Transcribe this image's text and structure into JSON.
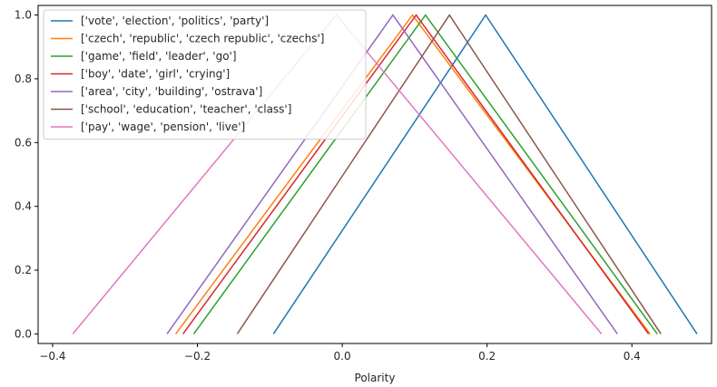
{
  "chart_data": {
    "type": "line",
    "title": "",
    "xlabel": "Polarity",
    "ylabel": "",
    "xlim": [
      -0.42,
      0.51
    ],
    "ylim": [
      -0.03,
      1.03
    ],
    "xticks": [
      -0.4,
      -0.2,
      0.0,
      0.2,
      0.4
    ],
    "xtick_labels": [
      "−0.4",
      "−0.2",
      "0.0",
      "0.2",
      "0.4"
    ],
    "yticks": [
      0.0,
      0.2,
      0.4,
      0.6,
      0.8,
      1.0
    ],
    "ytick_labels": [
      "0.0",
      "0.2",
      "0.4",
      "0.6",
      "0.8",
      "1.0"
    ],
    "grid": false,
    "legend_position": "top-left",
    "series": [
      {
        "name": "['vote', 'election', 'politics', 'party']",
        "color": "#1f77b4",
        "x": [
          -0.095,
          0.198,
          0.49
        ],
        "y": [
          0,
          1,
          0
        ]
      },
      {
        "name": "['czech', 'republic', 'czech republic', 'czechs']",
        "color": "#ff7f0e",
        "x": [
          -0.23,
          0.097,
          0.425
        ],
        "y": [
          0,
          1,
          0
        ]
      },
      {
        "name": "['game', 'field', 'leader', 'go']",
        "color": "#2ca02c",
        "x": [
          -0.205,
          0.115,
          0.435
        ],
        "y": [
          0,
          1,
          0
        ]
      },
      {
        "name": "['boy', 'date', 'girl', 'crying']",
        "color": "#d62728",
        "x": [
          -0.22,
          0.102,
          0.423
        ],
        "y": [
          0,
          1,
          0
        ]
      },
      {
        "name": "['area', 'city', 'building', 'ostrava']",
        "color": "#9467bd",
        "x": [
          -0.242,
          0.07,
          0.38
        ],
        "y": [
          0,
          1,
          0
        ]
      },
      {
        "name": "['school', 'education', 'teacher', 'class']",
        "color": "#8c564b",
        "x": [
          -0.145,
          0.148,
          0.44
        ],
        "y": [
          0,
          1,
          0
        ]
      },
      {
        "name": "['pay', 'wage', 'pension', 'live']",
        "color": "#e377c2",
        "x": [
          -0.372,
          -0.008,
          0.358
        ],
        "y": [
          0,
          1,
          0
        ]
      }
    ]
  }
}
